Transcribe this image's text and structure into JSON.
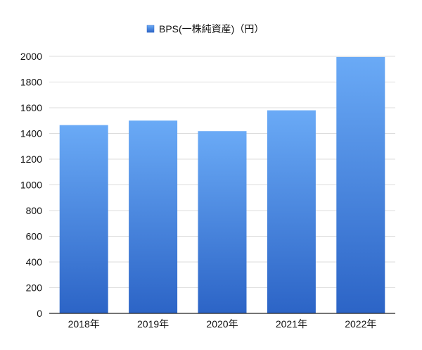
{
  "chart_data": {
    "type": "bar",
    "categories": [
      "2018年",
      "2019年",
      "2020年",
      "2021年",
      "2022年"
    ],
    "series": [
      {
        "name": "BPS(一株純資産)（円）",
        "values": [
          1465,
          1500,
          1418,
          1580,
          1995
        ]
      }
    ],
    "title": "",
    "xlabel": "",
    "ylabel": "",
    "ylim": [
      0,
      2000
    ],
    "yticks": [
      0,
      200,
      400,
      600,
      800,
      1000,
      1200,
      1400,
      1600,
      1800,
      2000
    ],
    "grid": true,
    "legend_position": "top-center",
    "colors": {
      "bar_top": "#6aaaf6",
      "bar_bottom": "#2c64c6",
      "grid": "#dddddd",
      "axis": "#222222"
    }
  }
}
